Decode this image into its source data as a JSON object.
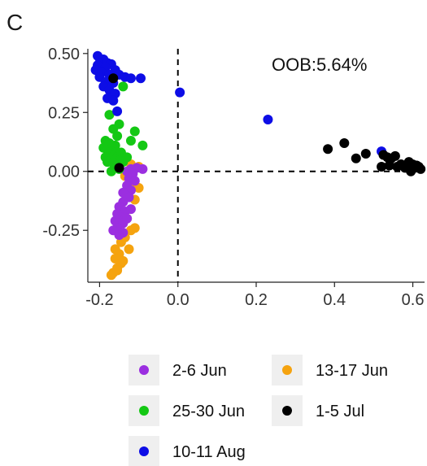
{
  "panel_label": "C",
  "chart_data": {
    "type": "scatter",
    "title": "",
    "xlabel": "",
    "ylabel": "",
    "xlim": [
      -0.23,
      0.63
    ],
    "ylim": [
      -0.47,
      0.52
    ],
    "xticks": [
      -0.2,
      0.0,
      0.2,
      0.4,
      0.6
    ],
    "xtick_labels": [
      "-0.2",
      "0.0",
      "0.2",
      "0.4",
      "0.6"
    ],
    "yticks": [
      0.5,
      0.25,
      0.0,
      -0.25
    ],
    "ytick_labels": [
      "0.50",
      "0.25",
      "0.00",
      "-0.25"
    ],
    "reference_lines": {
      "x": 0,
      "y": 0,
      "style": "dashed"
    },
    "grid": false,
    "annotation": "OOB:5.64%",
    "legend_position": "bottom",
    "series": [
      {
        "name": "2-6 Jun",
        "color": "#9B2FE0",
        "points": [
          [
            -0.09,
            0.01
          ],
          [
            -0.105,
            0.015
          ],
          [
            -0.12,
            0.01
          ],
          [
            -0.13,
            0.0
          ],
          [
            -0.115,
            -0.01
          ],
          [
            -0.125,
            -0.03
          ],
          [
            -0.11,
            -0.04
          ],
          [
            -0.13,
            -0.06
          ],
          [
            -0.12,
            -0.08
          ],
          [
            -0.14,
            -0.09
          ],
          [
            -0.125,
            -0.11
          ],
          [
            -0.14,
            -0.13
          ],
          [
            -0.15,
            -0.15
          ],
          [
            -0.135,
            -0.17
          ],
          [
            -0.15,
            -0.19
          ],
          [
            -0.16,
            -0.21
          ],
          [
            -0.14,
            -0.22
          ],
          [
            -0.155,
            -0.24
          ],
          [
            -0.165,
            -0.25
          ],
          [
            -0.15,
            -0.27
          ],
          [
            -0.13,
            -0.2
          ],
          [
            -0.12,
            -0.16
          ],
          [
            -0.14,
            -0.26
          ],
          [
            -0.155,
            -0.18
          ]
        ]
      },
      {
        "name": "13-17 Jun",
        "color": "#F5A30F",
        "points": [
          [
            -0.12,
            0.03
          ],
          [
            -0.1,
            0.02
          ],
          [
            -0.135,
            -0.02
          ],
          [
            -0.115,
            -0.05
          ],
          [
            -0.1,
            -0.07
          ],
          [
            -0.11,
            -0.12
          ],
          [
            -0.13,
            -0.2
          ],
          [
            -0.12,
            -0.25
          ],
          [
            -0.135,
            -0.28
          ],
          [
            -0.145,
            -0.3
          ],
          [
            -0.125,
            -0.33
          ],
          [
            -0.15,
            -0.35
          ],
          [
            -0.16,
            -0.37
          ],
          [
            -0.145,
            -0.39
          ],
          [
            -0.155,
            -0.41
          ],
          [
            -0.165,
            -0.43
          ],
          [
            -0.17,
            -0.44
          ],
          [
            -0.155,
            -0.42
          ],
          [
            -0.14,
            -0.38
          ],
          [
            -0.16,
            -0.33
          ],
          [
            -0.11,
            -0.24
          ]
        ]
      },
      {
        "name": "25-30 Jun",
        "color": "#14C814",
        "points": [
          [
            -0.14,
            0.36
          ],
          [
            -0.175,
            0.24
          ],
          [
            -0.15,
            0.2
          ],
          [
            -0.165,
            0.18
          ],
          [
            -0.11,
            0.17
          ],
          [
            -0.155,
            0.15
          ],
          [
            -0.185,
            0.13
          ],
          [
            -0.175,
            0.12
          ],
          [
            -0.16,
            0.11
          ],
          [
            -0.19,
            0.1
          ],
          [
            -0.18,
            0.09
          ],
          [
            -0.17,
            0.085
          ],
          [
            -0.16,
            0.08
          ],
          [
            -0.145,
            0.08
          ],
          [
            -0.175,
            0.07
          ],
          [
            -0.165,
            0.065
          ],
          [
            -0.155,
            0.06
          ],
          [
            -0.185,
            0.06
          ],
          [
            -0.17,
            0.05
          ],
          [
            -0.16,
            0.05
          ],
          [
            -0.15,
            0.045
          ],
          [
            -0.14,
            0.04
          ],
          [
            -0.18,
            0.04
          ],
          [
            -0.165,
            0.035
          ],
          [
            -0.13,
            0.06
          ],
          [
            -0.155,
            0.025
          ],
          [
            -0.15,
            0.01
          ],
          [
            -0.17,
            0.0
          ],
          [
            -0.09,
            0.11
          ],
          [
            -0.12,
            0.13
          ]
        ]
      },
      {
        "name": "1-5 Jul",
        "color": "#000000",
        "points": [
          [
            -0.165,
            0.395
          ],
          [
            -0.15,
            0.015
          ],
          [
            0.383,
            0.095
          ],
          [
            0.425,
            0.12
          ],
          [
            0.455,
            0.055
          ],
          [
            0.48,
            0.075
          ],
          [
            0.525,
            0.07
          ],
          [
            0.535,
            0.06
          ],
          [
            0.545,
            0.055
          ],
          [
            0.555,
            0.065
          ],
          [
            0.52,
            0.02
          ],
          [
            0.54,
            0.025
          ],
          [
            0.56,
            0.02
          ],
          [
            0.57,
            0.03
          ],
          [
            0.58,
            0.015
          ],
          [
            0.59,
            0.04
          ],
          [
            0.595,
            0.0
          ],
          [
            0.6,
            0.03
          ],
          [
            0.605,
            0.015
          ],
          [
            0.61,
            0.025
          ],
          [
            0.615,
            0.02
          ],
          [
            0.62,
            0.01
          ]
        ]
      },
      {
        "name": "10-11 Aug",
        "color": "#0D0DE6",
        "points": [
          [
            -0.205,
            0.49
          ],
          [
            -0.19,
            0.475
          ],
          [
            -0.2,
            0.46
          ],
          [
            -0.18,
            0.46
          ],
          [
            -0.17,
            0.455
          ],
          [
            -0.205,
            0.45
          ],
          [
            -0.185,
            0.44
          ],
          [
            -0.21,
            0.43
          ],
          [
            -0.16,
            0.43
          ],
          [
            -0.195,
            0.42
          ],
          [
            -0.15,
            0.41
          ],
          [
            -0.175,
            0.41
          ],
          [
            -0.2,
            0.4
          ],
          [
            -0.135,
            0.4
          ],
          [
            -0.12,
            0.395
          ],
          [
            -0.095,
            0.395
          ],
          [
            -0.185,
            0.38
          ],
          [
            -0.165,
            0.375
          ],
          [
            -0.19,
            0.36
          ],
          [
            -0.175,
            0.345
          ],
          [
            -0.16,
            0.33
          ],
          [
            -0.18,
            0.31
          ],
          [
            -0.165,
            0.3
          ],
          [
            -0.155,
            0.255
          ],
          [
            0.005,
            0.335
          ],
          [
            0.23,
            0.22
          ],
          [
            0.52,
            0.085
          ]
        ]
      }
    ]
  }
}
